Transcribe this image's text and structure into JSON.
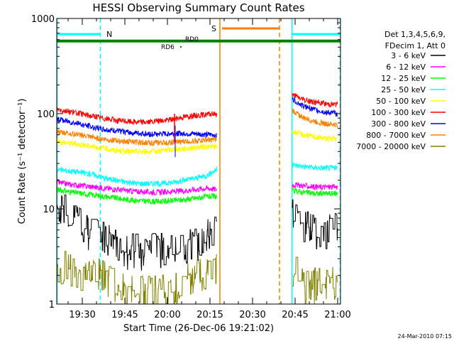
{
  "chart_data": {
    "type": "line",
    "title": "HESSI Observing Summary Count Rates",
    "xlabel": "Start Time (26-Dec-06 19:21:02)",
    "ylabel": "Count Rate (s⁻¹ detector⁻¹)",
    "y_scale": "log",
    "ylim": [
      1,
      1000
    ],
    "xlim_minutes_after_19_00": [
      21,
      121
    ],
    "x_ticks": [
      {
        "label": "19:30",
        "t": 30
      },
      {
        "label": "19:45",
        "t": 45
      },
      {
        "label": "20:00",
        "t": 60
      },
      {
        "label": "20:15",
        "t": 75
      },
      {
        "label": "20:30",
        "t": 90
      },
      {
        "label": "20:45",
        "t": 105
      },
      {
        "label": "21:00",
        "t": 120
      }
    ],
    "y_ticks": [
      {
        "label": "1",
        "v": 1
      },
      {
        "label": "10",
        "v": 10
      },
      {
        "label": "100",
        "v": 100
      },
      {
        "label": "1000",
        "v": 1000
      }
    ],
    "legend": {
      "placement": "right",
      "header": [
        "Det 1,3,4,5,6,9,",
        "FDecim 1, Att 0"
      ]
    },
    "series": [
      {
        "name": "3 - 6 keV",
        "color": "#000000",
        "segments": [
          {
            "t": [
              21,
              26,
              30,
              34,
              38,
              42,
              46,
              50,
              54,
              58,
              62,
              66,
              70,
              74,
              77.5
            ],
            "v": [
              11,
              8,
              6.5,
              5.5,
              4.8,
              4.2,
              3.8,
              3.7,
              3.7,
              3.8,
              3.9,
              4.2,
              4.6,
              5.5,
              6
            ]
          },
          {
            "t": [
              104,
              106,
              108,
              110,
              114,
              118,
              120
            ],
            "v": [
              9.5,
              7.5,
              6.8,
              6,
              5.8,
              6,
              6.2
            ]
          }
        ]
      },
      {
        "name": "6 - 12 keV",
        "color": "#ff00ff",
        "segments": [
          {
            "t": [
              21,
              26,
              30,
              34,
              38,
              42,
              46,
              50,
              54,
              58,
              62,
              66,
              70,
              74,
              77.5
            ],
            "v": [
              19,
              18,
              17.5,
              17,
              16.5,
              16,
              15.5,
              15.2,
              15,
              15,
              15.2,
              15.5,
              16,
              16.5,
              16
            ]
          },
          {
            "t": [
              104,
              108,
              112,
              116,
              120
            ],
            "v": [
              18,
              17.5,
              17,
              17,
              17
            ]
          }
        ]
      },
      {
        "name": "12 - 25 keV",
        "color": "#00ff00",
        "segments": [
          {
            "t": [
              21,
              26,
              30,
              34,
              38,
              42,
              46,
              50,
              54,
              58,
              62,
              66,
              70,
              74,
              77.5
            ],
            "v": [
              16,
              15,
              14.5,
              14,
              13.5,
              13,
              12.5,
              12.2,
              12,
              12,
              12.2,
              12.5,
              13,
              13.5,
              13.5
            ]
          },
          {
            "t": [
              104,
              108,
              112,
              116,
              120
            ],
            "v": [
              15.5,
              15,
              14.5,
              14.5,
              14.5
            ]
          }
        ]
      },
      {
        "name": "25 - 50 keV",
        "color": "#00ffff",
        "segments": [
          {
            "t": [
              21,
              26,
              30,
              34,
              38,
              42,
              46,
              50,
              54,
              58,
              62,
              66,
              70,
              74,
              77.5
            ],
            "v": [
              26,
              25,
              24,
              23,
              21,
              20,
              19,
              18.5,
              18.5,
              18.5,
              19,
              20,
              21,
              22.5,
              26
            ]
          },
          {
            "t": [
              104,
              108,
              112,
              116,
              120
            ],
            "v": [
              29,
              28,
              27,
              27,
              27
            ]
          }
        ]
      },
      {
        "name": "50 - 100 keV",
        "color": "#ffff00",
        "segments": [
          {
            "t": [
              21,
              26,
              30,
              34,
              38,
              42,
              46,
              50,
              54,
              58,
              62,
              66,
              70,
              74,
              77.5
            ],
            "v": [
              51,
              49,
              47,
              45,
              43,
              41,
              40,
              40,
              40,
              41,
              42,
              43,
              44,
              45,
              45
            ]
          },
          {
            "t": [
              104,
              108,
              112,
              116,
              120
            ],
            "v": [
              65,
              60,
              57,
              55,
              54
            ]
          }
        ]
      },
      {
        "name": "100 - 300 keV",
        "color": "#ff0000",
        "segments": [
          {
            "t": [
              21,
              26,
              30,
              34,
              38,
              42,
              46,
              50,
              54,
              58,
              62,
              66,
              70,
              74,
              77.5
            ],
            "v": [
              112,
              105,
              99,
              94,
              89,
              85,
              83,
              82,
              82,
              84,
              88,
              93,
              96,
              98,
              100
            ]
          },
          {
            "t": [
              104,
              108,
              112,
              116,
              120
            ],
            "v": [
              158,
              140,
              132,
              127,
              125
            ]
          }
        ]
      },
      {
        "name": "300 - 800 keV",
        "color": "#0000ff",
        "segments": [
          {
            "t": [
              21,
              26,
              30,
              34,
              38,
              42,
              46,
              50,
              54,
              58,
              62,
              66,
              70,
              74,
              77.5
            ],
            "v": [
              88,
              82,
              77,
              72,
              68,
              66,
              64,
              62,
              61,
              61,
              62,
              62,
              61,
              60,
              60
            ]
          },
          {
            "t": [
              104,
              108,
              112,
              116,
              120
            ],
            "v": [
              142,
              120,
              110,
              103,
              100
            ]
          }
        ]
      },
      {
        "name": "800 - 7000 keV",
        "color": "#ff8000",
        "segments": [
          {
            "t": [
              21,
              26,
              30,
              34,
              38,
              42,
              46,
              50,
              54,
              58,
              62,
              66,
              70,
              74,
              77.5
            ],
            "v": [
              64,
              62,
              59,
              56,
              54,
              52,
              51,
              50,
              49.5,
              49.5,
              50,
              51,
              52,
              53,
              53
            ]
          },
          {
            "t": [
              104,
              108,
              112,
              116,
              120
            ],
            "v": [
              108,
              90,
              83,
              78,
              76
            ]
          }
        ]
      },
      {
        "name": "7000 - 20000 keV",
        "color": "#808000",
        "segments": [
          {
            "t": [
              21,
              25,
              30,
              35,
              39,
              42,
              45,
              48,
              52,
              56,
              60,
              64,
              68,
              72,
              75,
              77.5
            ],
            "v": [
              2.5,
              2.4,
              2.3,
              2.2,
              2,
              1.5,
              1.4,
              1.4,
              1.3,
              1.35,
              1.4,
              1.5,
              1.9,
              2.1,
              2.2,
              2.3
            ]
          },
          {
            "t": [
              104,
              108,
              112,
              116,
              120
            ],
            "v": [
              2.4,
              1.6,
              1.6,
              1.7,
              1.8
            ]
          }
        ]
      }
    ],
    "annotations": {
      "N_label": "N",
      "S_label": "S",
      "RD0_label": "RD0",
      "RD6_label": "RD6",
      "night_color": "#00ffff",
      "saa_color": "#ff8000",
      "rd_color": "#008000",
      "night_periods": [
        [
          21,
          36.5
        ],
        [
          103.8,
          121
        ]
      ],
      "saa_period": [
        78.5,
        99.5
      ],
      "rd0_level": 580,
      "rd6_point": {
        "t": 64.5,
        "v": 500
      },
      "flare_spike": {
        "t": 62.5,
        "v": [
          50,
          100
        ]
      }
    },
    "timestamp": "24-Mar-2010 07:15"
  }
}
